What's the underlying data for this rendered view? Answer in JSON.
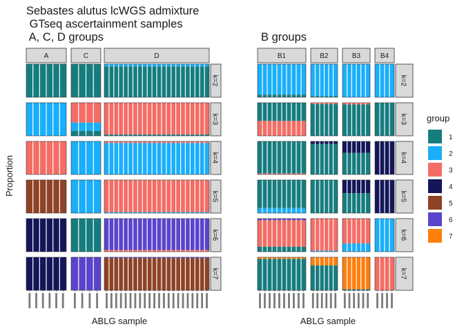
{
  "chart_data": {
    "type": "bar",
    "subtype": "stacked-admixture-faceted",
    "title_lines": [
      "Sebastes alutus lcWGS admixture",
      " GTseq ascertainment samples",
      " A, C, D groups"
    ],
    "xlabel": "ABLG sample",
    "ylabel": "Proportion",
    "k_values": [
      "k=2",
      "k=3",
      "k=4",
      "k=5",
      "k=6",
      "k=7"
    ],
    "legend": {
      "title": "group",
      "position": "right",
      "entries": [
        {
          "label": "1",
          "color": "#167D7F"
        },
        {
          "label": "2",
          "color": "#1AAFFB"
        },
        {
          "label": "3",
          "color": "#F46D65"
        },
        {
          "label": "4",
          "color": "#141659"
        },
        {
          "label": "5",
          "color": "#8E4326"
        },
        {
          "label": "6",
          "color": "#5B44CC"
        },
        {
          "label": "7",
          "color": "#FF7F0E"
        }
      ]
    },
    "panels": [
      {
        "subtitle": "",
        "xlabel": "ABLG sample",
        "groups": [
          {
            "name": "A",
            "n": 6,
            "rows": [
              {
                "k": "k=2",
                "segments": [
                  [
                    1,
                    1.0
                  ]
                ]
              },
              {
                "k": "k=3",
                "segments": [
                  [
                    2,
                    1.0
                  ]
                ]
              },
              {
                "k": "k=4",
                "segments": [
                  [
                    3,
                    1.0
                  ]
                ]
              },
              {
                "k": "k=5",
                "segments": [
                  [
                    5,
                    1.0
                  ]
                ]
              },
              {
                "k": "k=6",
                "segments": [
                  [
                    4,
                    1.0
                  ]
                ]
              },
              {
                "k": "k=7",
                "segments": [
                  [
                    4,
                    1.0
                  ]
                ]
              }
            ]
          },
          {
            "name": "C",
            "n": 4,
            "rows": [
              {
                "k": "k=2",
                "segments": [
                  [
                    1,
                    1.0
                  ]
                ]
              },
              {
                "k": "k=3",
                "segments": [
                  [
                    3,
                    0.6
                  ],
                  [
                    2,
                    0.25
                  ],
                  [
                    1,
                    0.15
                  ]
                ]
              },
              {
                "k": "k=4",
                "segments": [
                  [
                    2,
                    1.0
                  ]
                ]
              },
              {
                "k": "k=5",
                "segments": [
                  [
                    2,
                    1.0
                  ]
                ]
              },
              {
                "k": "k=6",
                "segments": [
                  [
                    1,
                    1.0
                  ]
                ]
              },
              {
                "k": "k=7",
                "segments": [
                  [
                    6,
                    1.0
                  ]
                ]
              }
            ]
          },
          {
            "name": "D",
            "n": 22,
            "rows": [
              {
                "k": "k=2",
                "segments": [
                  [
                    2,
                    0.07
                  ],
                  [
                    1,
                    0.93
                  ]
                ]
              },
              {
                "k": "k=3",
                "segments": [
                  [
                    3,
                    0.96
                  ],
                  [
                    1,
                    0.04
                  ]
                ]
              },
              {
                "k": "k=4",
                "segments": [
                  [
                    3,
                    0.05
                  ],
                  [
                    2,
                    0.95
                  ]
                ]
              },
              {
                "k": "k=5",
                "segments": [
                  [
                    3,
                    0.97
                  ],
                  [
                    2,
                    0.03
                  ]
                ]
              },
              {
                "k": "k=6",
                "segments": [
                  [
                    6,
                    0.95
                  ],
                  [
                    3,
                    0.05
                  ]
                ]
              },
              {
                "k": "k=7",
                "segments": [
                  [
                    6,
                    0.03
                  ],
                  [
                    5,
                    0.97
                  ]
                ]
              }
            ]
          }
        ]
      },
      {
        "subtitle": "B groups",
        "xlabel": "ABLG sample",
        "groups": [
          {
            "name": "B1",
            "n": 10,
            "rows": [
              {
                "k": "k=2",
                "segments": [
                  [
                    2,
                    0.92
                  ],
                  [
                    1,
                    0.08
                  ]
                ]
              },
              {
                "k": "k=3",
                "segments": [
                  [
                    1,
                    0.55
                  ],
                  [
                    3,
                    0.45
                  ]
                ]
              },
              {
                "k": "k=4",
                "segments": [
                  [
                    1,
                    0.97
                  ],
                  [
                    3,
                    0.03
                  ]
                ]
              },
              {
                "k": "k=5",
                "segments": [
                  [
                    1,
                    0.85
                  ],
                  [
                    2,
                    0.15
                  ]
                ]
              },
              {
                "k": "k=6",
                "segments": [
                  [
                    6,
                    0.05
                  ],
                  [
                    3,
                    0.8
                  ],
                  [
                    1,
                    0.15
                  ]
                ]
              },
              {
                "k": "k=7",
                "segments": [
                  [
                    7,
                    0.05
                  ],
                  [
                    1,
                    0.95
                  ]
                ]
              }
            ]
          },
          {
            "name": "B2",
            "n": 6,
            "rows": [
              {
                "k": "k=2",
                "segments": [
                  [
                    2,
                    0.97
                  ],
                  [
                    1,
                    0.03
                  ]
                ]
              },
              {
                "k": "k=3",
                "segments": [
                  [
                    3,
                    0.04
                  ],
                  [
                    1,
                    0.96
                  ]
                ]
              },
              {
                "k": "k=4",
                "segments": [
                  [
                    4,
                    0.08
                  ],
                  [
                    1,
                    0.92
                  ]
                ]
              },
              {
                "k": "k=5",
                "segments": [
                  [
                    1,
                    1.0
                  ]
                ]
              },
              {
                "k": "k=6",
                "segments": [
                  [
                    3,
                    0.97
                  ],
                  [
                    2,
                    0.03
                  ]
                ]
              },
              {
                "k": "k=7",
                "segments": [
                  [
                    7,
                    0.25
                  ],
                  [
                    1,
                    0.75
                  ]
                ]
              }
            ]
          },
          {
            "name": "B3",
            "n": 6,
            "rows": [
              {
                "k": "k=2",
                "segments": [
                  [
                    2,
                    1.0
                  ]
                ]
              },
              {
                "k": "k=3",
                "segments": [
                  [
                    3,
                    0.05
                  ],
                  [
                    1,
                    0.95
                  ]
                ]
              },
              {
                "k": "k=4",
                "segments": [
                  [
                    4,
                    0.35
                  ],
                  [
                    1,
                    0.65
                  ]
                ]
              },
              {
                "k": "k=5",
                "segments": [
                  [
                    4,
                    0.4
                  ],
                  [
                    1,
                    0.6
                  ]
                ]
              },
              {
                "k": "k=6",
                "segments": [
                  [
                    3,
                    0.75
                  ],
                  [
                    2,
                    0.25
                  ]
                ]
              },
              {
                "k": "k=7",
                "segments": [
                  [
                    7,
                    0.97
                  ],
                  [
                    1,
                    0.03
                  ]
                ]
              }
            ]
          },
          {
            "name": "B4",
            "n": 4,
            "rows": [
              {
                "k": "k=2",
                "segments": [
                  [
                    2,
                    1.0
                  ]
                ]
              },
              {
                "k": "k=3",
                "segments": [
                  [
                    1,
                    1.0
                  ]
                ]
              },
              {
                "k": "k=4",
                "segments": [
                  [
                    4,
                    1.0
                  ]
                ]
              },
              {
                "k": "k=5",
                "segments": [
                  [
                    4,
                    1.0
                  ]
                ]
              },
              {
                "k": "k=6",
                "segments": [
                  [
                    2,
                    1.0
                  ]
                ]
              },
              {
                "k": "k=7",
                "segments": [
                  [
                    3,
                    1.0
                  ]
                ]
              }
            ]
          }
        ]
      }
    ]
  }
}
